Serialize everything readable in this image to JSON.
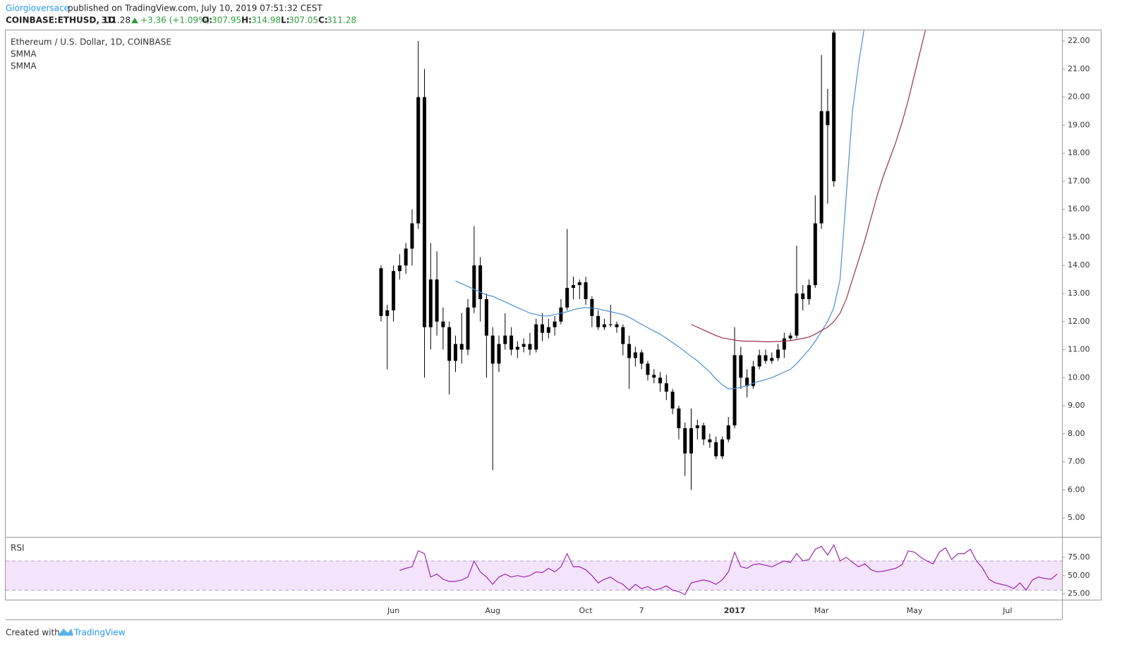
{
  "header": {
    "user": "Giorgioversace",
    "published": "published on TradingView.com, July 10, 2019 07:51:32 CEST",
    "symbol": "COINBASE:ETHUSD, 1D",
    "last": "311.28",
    "change": "+3.36 (+1.09%)",
    "o_label": "O:",
    "open": "307.95",
    "h_label": "H:",
    "high": "314.98",
    "l_label": "L:",
    "low": "307.05",
    "c_label": "C:",
    "close": "311.28"
  },
  "footer": {
    "created": "Created with",
    "brand": "TradingView"
  },
  "chart_data": [
    {
      "type": "candlestick",
      "title": "Ethereum / U.S. Dollar, 1D, COINBASE",
      "candle_color": "#000000",
      "categories": [
        null,
        null,
        "Jun",
        null,
        null,
        null,
        null,
        null,
        null,
        null,
        null,
        null,
        null,
        null,
        null,
        null,
        null,
        null,
        "Aug",
        null,
        null,
        null,
        null,
        null,
        null,
        null,
        null,
        null,
        null,
        null,
        null,
        null,
        null,
        "Oct",
        null,
        null,
        null,
        null,
        null,
        null,
        null,
        null,
        "7",
        null,
        null,
        null,
        null,
        null,
        null,
        null,
        null,
        null,
        null,
        null,
        null,
        null,
        null,
        "2017",
        null,
        null,
        null,
        null,
        null,
        null,
        null,
        null,
        null,
        null,
        null,
        null,
        null,
        "Mar",
        null,
        null,
        null,
        null,
        null,
        null,
        null,
        null,
        null,
        null,
        null,
        null,
        null,
        null,
        "May",
        null,
        null,
        null,
        null,
        null,
        null,
        null,
        null,
        null,
        null,
        null,
        null,
        null,
        null,
        "Jul",
        null,
        null,
        null,
        null,
        null,
        null,
        null,
        null
      ],
      "open": [
        13.9,
        12.2,
        12.4,
        13.8,
        14.0,
        14.6,
        15.5,
        20.0,
        11.8,
        13.5,
        12.0,
        11.8,
        10.6,
        11.2,
        11.0,
        12.5,
        14.0,
        12.8,
        11.5,
        10.5,
        11.2,
        11.5,
        11.0,
        11.1,
        11.2,
        11.0,
        11.9,
        11.6,
        11.8,
        12.0,
        12.5,
        13.2,
        13.3,
        13.4,
        12.8,
        12.2,
        11.8,
        11.9,
        11.9,
        11.8,
        11.2,
        10.7,
        10.9,
        10.5,
        10.1,
        10.0,
        9.8,
        9.5,
        8.9,
        8.2,
        7.3,
        8.2,
        8.3,
        7.8,
        7.7,
        7.2,
        7.8,
        8.3,
        10.8,
        10.0,
        9.7,
        10.4,
        10.8,
        10.6,
        10.7,
        11.0,
        11.4,
        11.5,
        13.0,
        12.8,
        13.3,
        15.5,
        19.5,
        17.0,
        null,
        null,
        null,
        null,
        null,
        null,
        null,
        null,
        null,
        null,
        null,
        null,
        null,
        null,
        null,
        null,
        null,
        null,
        null,
        null,
        null,
        null,
        null,
        null,
        null,
        null,
        null,
        null,
        null,
        null,
        null,
        null,
        null,
        null,
        null,
        null
      ],
      "high": [
        14.0,
        12.6,
        14.0,
        14.4,
        14.8,
        16.0,
        22.0,
        21.0,
        14.8,
        14.5,
        12.5,
        12.0,
        11.5,
        12.3,
        12.8,
        15.4,
        14.3,
        13.0,
        11.8,
        11.5,
        12.3,
        11.8,
        11.3,
        11.4,
        11.6,
        12.1,
        12.3,
        12.1,
        12.2,
        12.8,
        15.3,
        13.6,
        13.5,
        13.6,
        12.9,
        12.4,
        12.1,
        12.6,
        12.0,
        11.9,
        11.5,
        11.1,
        11.0,
        10.6,
        10.3,
        10.2,
        10.1,
        9.6,
        9.0,
        8.4,
        8.9,
        8.5,
        8.4,
        8.0,
        7.9,
        7.9,
        8.6,
        11.8,
        11.1,
        10.3,
        10.6,
        11.0,
        11.0,
        10.9,
        11.2,
        11.6,
        11.6,
        14.7,
        13.3,
        13.5,
        16.5,
        21.5,
        20.3,
        22.4,
        null,
        null,
        null,
        null,
        null,
        null,
        null,
        null,
        null,
        null,
        null,
        null,
        null,
        null,
        null,
        null,
        null,
        null,
        null,
        null,
        null,
        null,
        null,
        null,
        null,
        null,
        null,
        null,
        null,
        null,
        null,
        null,
        null,
        null,
        null,
        null
      ],
      "low": [
        12.0,
        10.3,
        12.0,
        13.5,
        13.7,
        14.0,
        15.3,
        10.0,
        11.0,
        11.5,
        11.0,
        9.4,
        10.2,
        10.5,
        10.8,
        12.3,
        12.0,
        10.0,
        6.7,
        10.2,
        11.0,
        10.8,
        10.7,
        10.9,
        10.8,
        10.9,
        11.3,
        11.4,
        11.5,
        11.9,
        12.4,
        12.8,
        12.8,
        12.6,
        11.8,
        11.7,
        11.7,
        11.8,
        11.6,
        10.8,
        9.6,
        10.4,
        10.3,
        9.9,
        9.8,
        9.5,
        9.2,
        8.7,
        7.8,
        6.5,
        6.0,
        7.8,
        7.6,
        7.5,
        7.1,
        7.1,
        7.7,
        8.2,
        9.6,
        9.3,
        9.6,
        10.3,
        10.5,
        10.5,
        10.6,
        10.7,
        11.3,
        11.4,
        12.4,
        12.6,
        13.2,
        15.3,
        16.2,
        16.8,
        null,
        null,
        null,
        null,
        null,
        null,
        null,
        null,
        null,
        null,
        null,
        null,
        null,
        null,
        null,
        null,
        null,
        null,
        null,
        null,
        null,
        null,
        null,
        null,
        null,
        null,
        null,
        null,
        null,
        null,
        null,
        null,
        null,
        null,
        null,
        null
      ],
      "close": [
        12.2,
        12.4,
        13.8,
        14.0,
        14.6,
        15.5,
        20.0,
        11.8,
        13.5,
        12.0,
        11.8,
        10.6,
        11.2,
        11.0,
        12.5,
        14.0,
        12.8,
        11.5,
        10.5,
        11.2,
        11.5,
        11.0,
        11.1,
        11.2,
        11.0,
        11.9,
        11.6,
        11.8,
        12.0,
        12.5,
        13.2,
        13.3,
        13.4,
        12.8,
        12.2,
        11.8,
        11.9,
        11.9,
        11.8,
        11.2,
        10.7,
        10.9,
        10.5,
        10.1,
        10.0,
        9.8,
        9.5,
        8.9,
        8.2,
        7.3,
        8.2,
        8.3,
        7.8,
        7.7,
        7.2,
        7.8,
        8.3,
        10.8,
        10.0,
        9.7,
        10.4,
        10.8,
        10.6,
        10.7,
        11.0,
        11.4,
        11.5,
        13.0,
        12.8,
        13.3,
        15.5,
        19.5,
        19.0,
        22.3,
        null,
        null,
        null,
        null,
        null,
        null,
        null,
        null,
        null,
        null,
        null,
        null,
        null,
        null,
        null,
        null,
        null,
        null,
        null,
        null,
        null,
        null,
        null,
        null,
        null,
        null,
        null,
        null,
        null,
        null,
        null,
        null,
        null,
        null,
        null,
        null
      ],
      "series": [
        {
          "name": "SMMA",
          "color": "#4a8fd4",
          "values": [
            null,
            null,
            null,
            null,
            null,
            null,
            null,
            null,
            null,
            null,
            null,
            null,
            13.45,
            13.35,
            13.25,
            13.15,
            13.05,
            12.95,
            12.9,
            12.8,
            12.7,
            12.6,
            12.5,
            12.4,
            12.3,
            12.25,
            12.2,
            12.2,
            12.25,
            12.3,
            12.35,
            12.42,
            12.47,
            12.5,
            12.48,
            12.45,
            12.4,
            12.35,
            12.3,
            12.25,
            12.15,
            12.03,
            11.9,
            11.78,
            11.66,
            11.55,
            11.4,
            11.25,
            11.1,
            10.93,
            10.76,
            10.6,
            10.4,
            10.2,
            9.95,
            9.75,
            9.6,
            9.62,
            9.65,
            9.72,
            9.8,
            9.87,
            9.93,
            10.0,
            10.1,
            10.2,
            10.3,
            10.5,
            10.75,
            11.0,
            11.3,
            11.65,
            12.0,
            12.5,
            13.5,
            16.5,
            19.5,
            21.2,
            22.6,
            null,
            null,
            null,
            null,
            null,
            null,
            null,
            null,
            null,
            null,
            null,
            null,
            null,
            null,
            null,
            null,
            null,
            null,
            null,
            null,
            null,
            null,
            null,
            null,
            null,
            null,
            null,
            null,
            null,
            null,
            null
          ]
        },
        {
          "name": "SMMA",
          "color": "#9a2e4c",
          "values": [
            null,
            null,
            null,
            null,
            null,
            null,
            null,
            null,
            null,
            null,
            null,
            null,
            null,
            null,
            null,
            null,
            null,
            null,
            null,
            null,
            null,
            null,
            null,
            null,
            null,
            null,
            null,
            null,
            null,
            null,
            null,
            null,
            null,
            null,
            null,
            null,
            null,
            null,
            null,
            null,
            null,
            null,
            null,
            null,
            null,
            null,
            null,
            null,
            null,
            null,
            11.9,
            11.8,
            11.7,
            11.6,
            11.5,
            11.42,
            11.38,
            11.34,
            11.31,
            11.3,
            11.3,
            11.29,
            11.28,
            11.28,
            11.29,
            11.3,
            11.32,
            11.36,
            11.4,
            11.45,
            11.55,
            11.68,
            11.8,
            12.0,
            12.3,
            12.8,
            13.5,
            14.2,
            14.9,
            15.7,
            16.5,
            17.2,
            17.8,
            18.4,
            19.1,
            19.9,
            20.8,
            21.7,
            22.6,
            null,
            null,
            null,
            null,
            null,
            null,
            null,
            null,
            null,
            null,
            null,
            null,
            null,
            null,
            null,
            null,
            null,
            null,
            null,
            null,
            null
          ]
        }
      ],
      "ylim": [
        4.35,
        22.38
      ],
      "yticks": [
        {
          "value": 5,
          "label": "5.00"
        },
        {
          "value": 6,
          "label": "6.00"
        },
        {
          "value": 7,
          "label": "7.00"
        },
        {
          "value": 8,
          "label": "8.00"
        },
        {
          "value": 9,
          "label": "9.00"
        },
        {
          "value": 10,
          "label": "10.00"
        },
        {
          "value": 11,
          "label": "11.00"
        },
        {
          "value": 12,
          "label": "12.00"
        },
        {
          "value": 13,
          "label": "13.00"
        },
        {
          "value": 14,
          "label": "14.00"
        },
        {
          "value": 15,
          "label": "15.00"
        },
        {
          "value": 16,
          "label": "16.00"
        },
        {
          "value": 17,
          "label": "17.00"
        },
        {
          "value": 18,
          "label": "18.00"
        },
        {
          "value": 19,
          "label": "19.00"
        },
        {
          "value": 20,
          "label": "20.00"
        },
        {
          "value": 21,
          "label": "21.00"
        },
        {
          "value": 22,
          "label": "22.00"
        }
      ]
    },
    {
      "type": "line",
      "title": "RSI",
      "color": "#9c27b0",
      "band_color": "#f3e3fb",
      "values": [
        null,
        null,
        null,
        57,
        60,
        62,
        84,
        80,
        48,
        52,
        45,
        42,
        42,
        44,
        48,
        70,
        55,
        48,
        38,
        48,
        52,
        48,
        50,
        48,
        50,
        55,
        54,
        60,
        55,
        62,
        80,
        62,
        62,
        58,
        50,
        40,
        45,
        48,
        42,
        38,
        30,
        38,
        32,
        35,
        30,
        32,
        36,
        30,
        28,
        24,
        40,
        42,
        44,
        42,
        38,
        44,
        55,
        82,
        62,
        60,
        65,
        66,
        64,
        62,
        66,
        70,
        68,
        80,
        70,
        72,
        86,
        90,
        78,
        92,
        70,
        75,
        68,
        62,
        66,
        58,
        55,
        56,
        58,
        60,
        65,
        84,
        82,
        75,
        70,
        66,
        82,
        88,
        72,
        80,
        80,
        86,
        70,
        60,
        45,
        40,
        38,
        36,
        32,
        40,
        30,
        44,
        48,
        46,
        45,
        52
      ],
      "bands": [
        30,
        70
      ],
      "ylim": [
        17,
        102
      ],
      "yticks": [
        {
          "value": 25,
          "label": "25.00"
        },
        {
          "value": 50,
          "label": "50.00"
        },
        {
          "value": 75,
          "label": "75.00"
        }
      ]
    }
  ]
}
